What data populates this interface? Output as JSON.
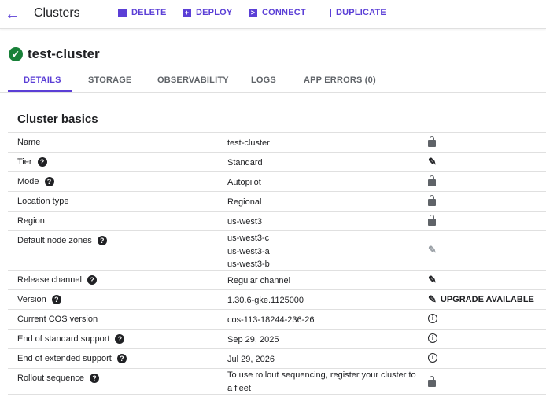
{
  "header": {
    "title": "Clusters",
    "actions": [
      {
        "label": "DELETE",
        "icon": "trash-icon"
      },
      {
        "label": "DEPLOY",
        "icon": "plus-box-icon"
      },
      {
        "label": "CONNECT",
        "icon": "terminal-icon"
      },
      {
        "label": "DUPLICATE",
        "icon": "copy-icon"
      }
    ]
  },
  "cluster": {
    "name": "test-cluster",
    "status": "running"
  },
  "tabs": [
    "DETAILS",
    "STORAGE",
    "OBSERVABILITY",
    "LOGS",
    "APP ERRORS (0)"
  ],
  "active_tab": "DETAILS",
  "section": {
    "title": "Cluster basics"
  },
  "rows": [
    {
      "label": "Name",
      "value": "test-cluster",
      "icon": "lock"
    },
    {
      "label": "Tier",
      "help": true,
      "value": "Standard",
      "icon": "pencil"
    },
    {
      "label": "Mode",
      "help": true,
      "value": "Autopilot",
      "icon": "lock"
    },
    {
      "label": "Location type",
      "value": "Regional",
      "icon": "lock"
    },
    {
      "label": "Region",
      "value": "us-west3",
      "icon": "lock"
    },
    {
      "label": "Default node zones",
      "help": true,
      "values": [
        "us-west3-c",
        "us-west3-a",
        "us-west3-b"
      ],
      "icon": "pencil-disabled"
    },
    {
      "label": "Release channel",
      "help": true,
      "value": "Regular channel",
      "icon": "pencil"
    },
    {
      "label": "Version",
      "help": true,
      "value": "1.30.6-gke.1125000",
      "icon": "pencil",
      "action": "UPGRADE AVAILABLE"
    },
    {
      "label": "Current COS version",
      "value": "cos-113-18244-236-26",
      "icon": "info"
    },
    {
      "label": "End of standard support",
      "help": true,
      "value": "Sep 29, 2025",
      "icon": "info"
    },
    {
      "label": "End of extended support",
      "help": true,
      "value": "Jul 29, 2026",
      "icon": "info"
    },
    {
      "label": "Rollout sequence",
      "help": true,
      "value": "To use rollout sequencing, register your cluster to a fleet",
      "icon": "lock"
    }
  ],
  "colors": {
    "accent": "#5b3fd6",
    "success": "#188038"
  }
}
